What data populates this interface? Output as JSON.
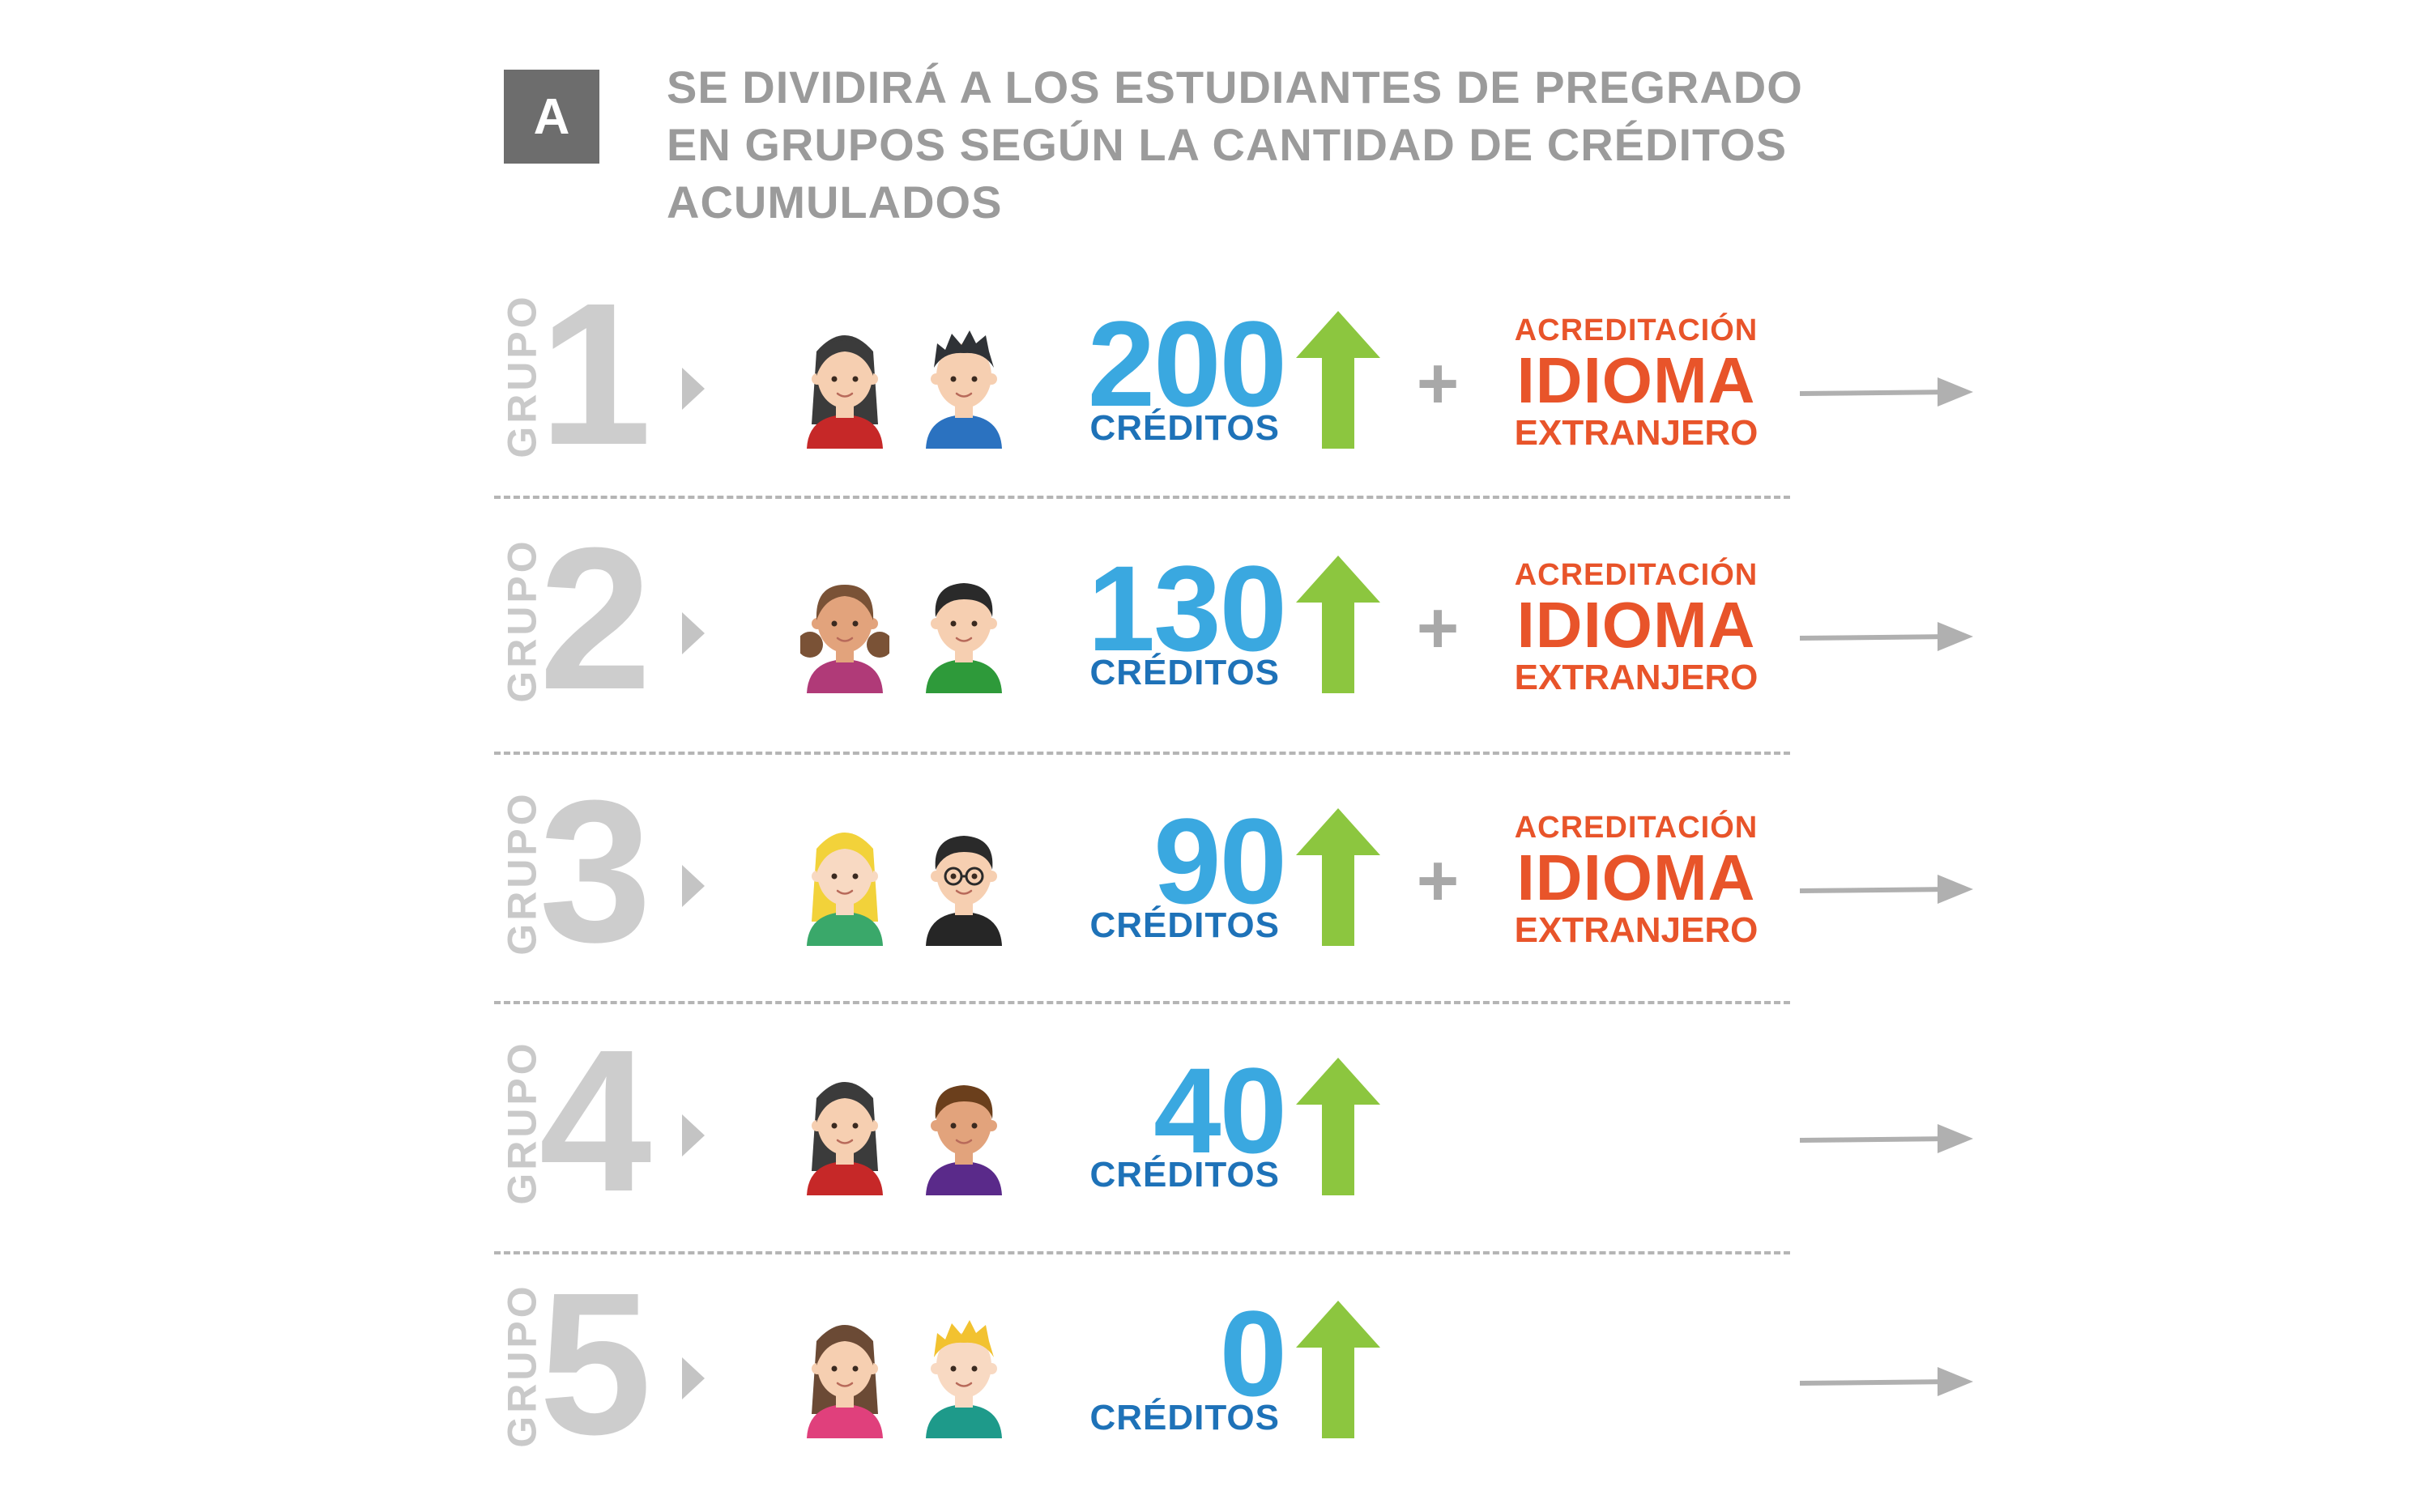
{
  "header": {
    "badge": "A",
    "lines": [
      "SE DIVIDIRÁ A LOS ESTUDIANTES DE PREGRADO",
      "EN GRUPOS SEGÚN LA CANTIDAD DE CRÉDITOS",
      "ACUMULADOS"
    ]
  },
  "groups": [
    {
      "label": "GRUPO",
      "number": "1",
      "credits": "200",
      "credits_label": "CRÉDITOS",
      "plus": "+",
      "acreditacion": "ACREDITACIÓN",
      "idioma": "IDIOMA",
      "extranjero": "EXTRANJERO",
      "avatars": [
        "girl-dark-hair-avatar",
        "boy-spiky-hair-avatar"
      ]
    },
    {
      "label": "GRUPO",
      "number": "2",
      "credits": "130",
      "credits_label": "CRÉDITOS",
      "plus": "+",
      "acreditacion": "ACREDITACIÓN",
      "idioma": "IDIOMA",
      "extranjero": "EXTRANJERO",
      "avatars": [
        "girl-pigtails-avatar",
        "boy-black-hair-avatar"
      ]
    },
    {
      "label": "GRUPO",
      "number": "3",
      "credits": "90",
      "credits_label": "CRÉDITOS",
      "plus": "+",
      "acreditacion": "ACREDITACIÓN",
      "idioma": "IDIOMA",
      "extranjero": "EXTRANJERO",
      "avatars": [
        "girl-blonde-avatar",
        "boy-glasses-avatar"
      ]
    },
    {
      "label": "GRUPO",
      "number": "4",
      "credits": "40",
      "credits_label": "CRÉDITOS",
      "plus": "",
      "acreditacion": "",
      "idioma": "",
      "extranjero": "",
      "avatars": [
        "girl-dark-hair-avatar",
        "boy-brown-hair-avatar"
      ]
    },
    {
      "label": "GRUPO",
      "number": "5",
      "credits": "0",
      "credits_label": "CRÉDITOS",
      "plus": "",
      "acreditacion": "",
      "idioma": "",
      "extranjero": "",
      "avatars": [
        "girl-brown-hair-avatar",
        "boy-blonde-avatar"
      ]
    }
  ],
  "colors": {
    "credits_number": "#3aa8e0",
    "credits_label": "#1e72b8",
    "up_arrow": "#8cc63f",
    "acreditacion": "#e8542a",
    "grupo": "#cdcdcd",
    "header": "#9b9b9b"
  }
}
